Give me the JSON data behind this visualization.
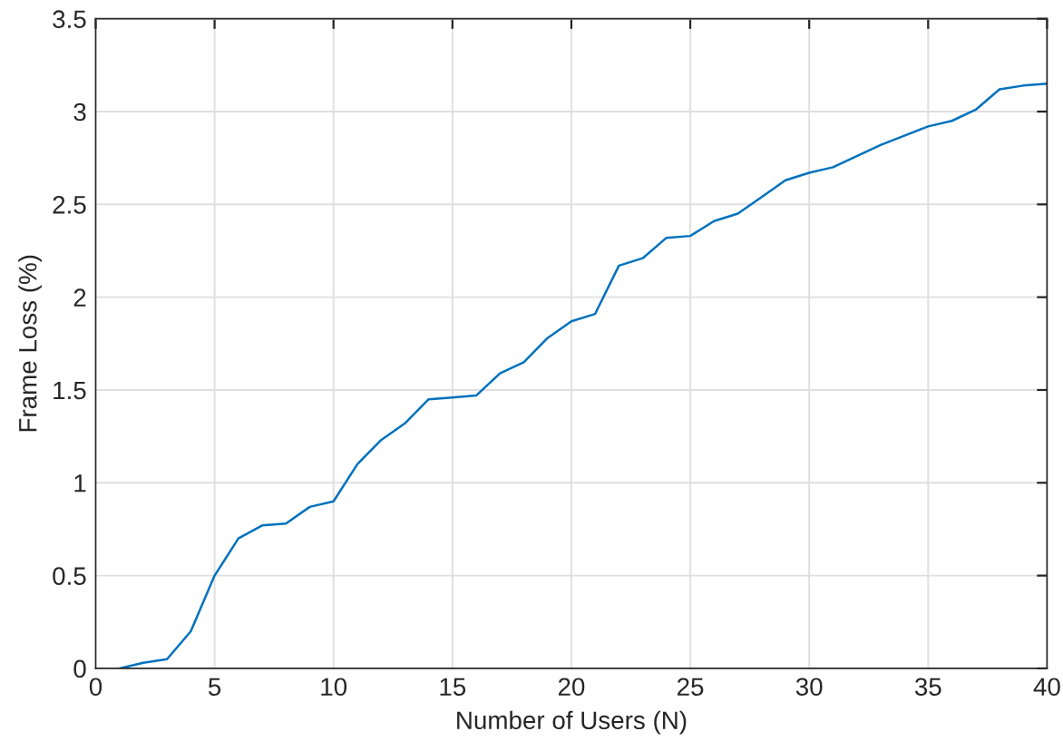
{
  "chart_data": {
    "type": "line",
    "xlabel": "Number of Users (N)",
    "ylabel": "Frame Loss (%)",
    "x": [
      1,
      2,
      3,
      4,
      5,
      6,
      7,
      8,
      9,
      10,
      11,
      12,
      13,
      14,
      15,
      16,
      17,
      18,
      19,
      20,
      21,
      22,
      23,
      24,
      25,
      26,
      27,
      28,
      29,
      30,
      31,
      32,
      33,
      34,
      35,
      36,
      37,
      38,
      39,
      40
    ],
    "series": [
      {
        "color": "#0072bd",
        "values": [
          0,
          0.03,
          0.05,
          0.2,
          0.5,
          0.7,
          0.77,
          0.78,
          0.87,
          0.9,
          1.1,
          1.23,
          1.32,
          1.45,
          1.46,
          1.47,
          1.59,
          1.65,
          1.78,
          1.87,
          1.91,
          2.17,
          2.21,
          2.32,
          2.33,
          2.41,
          2.45,
          2.54,
          2.63,
          2.67,
          2.7,
          2.76,
          2.82,
          2.87,
          2.92,
          2.95,
          3.01,
          3.12,
          3.14,
          3.15
        ]
      }
    ],
    "xlim": [
      0,
      40
    ],
    "xticks": [
      0,
      5,
      10,
      15,
      20,
      25,
      30,
      35,
      40
    ],
    "ylim": [
      0,
      3.5
    ],
    "yticks": [
      0,
      0.5,
      1,
      1.5,
      2,
      2.5,
      3,
      3.5
    ],
    "grid": true,
    "marker": "none",
    "line_style": "solid"
  }
}
